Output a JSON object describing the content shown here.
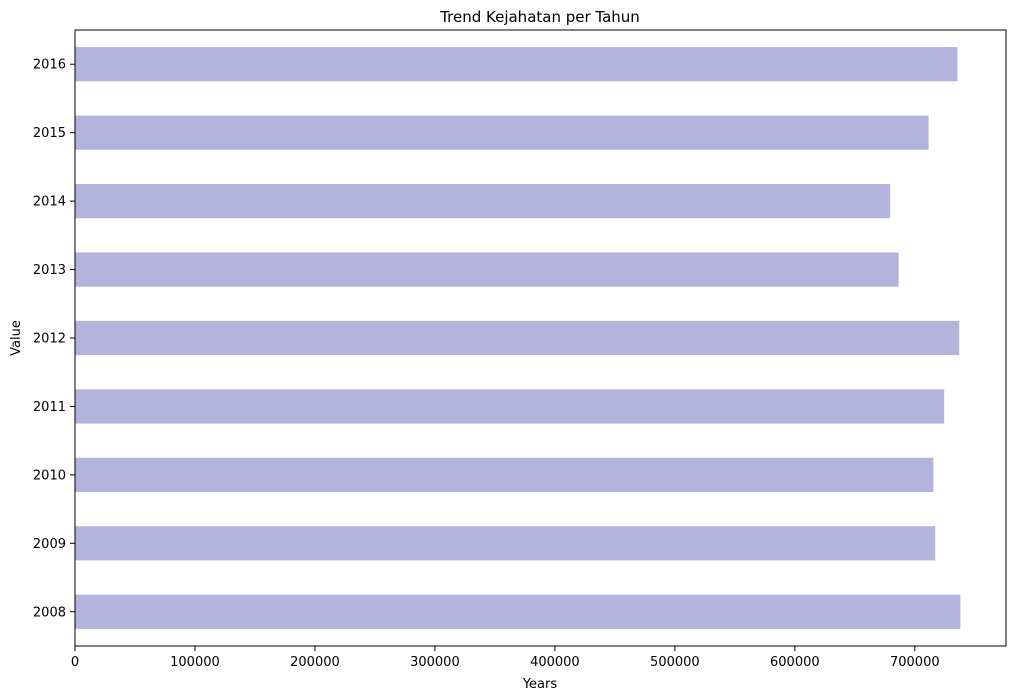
{
  "chart_data": {
    "type": "bar",
    "orientation": "horizontal",
    "title": "Trend Kejahatan per Tahun",
    "xlabel": "Years",
    "ylabel": "Value",
    "categories": [
      "2008",
      "2009",
      "2010",
      "2011",
      "2012",
      "2013",
      "2014",
      "2015",
      "2016"
    ],
    "values": [
      738000,
      717000,
      715500,
      724500,
      737000,
      686500,
      679500,
      711500,
      735500
    ],
    "xlim": [
      0,
      776000
    ],
    "xticks": [
      0,
      100000,
      200000,
      300000,
      400000,
      500000,
      600000,
      700000
    ],
    "xtick_labels": [
      "0",
      "100000",
      "200000",
      "300000",
      "400000",
      "500000",
      "600000",
      "700000"
    ],
    "bar_color": "#b3b3dd",
    "grid": false,
    "legend": "none"
  }
}
